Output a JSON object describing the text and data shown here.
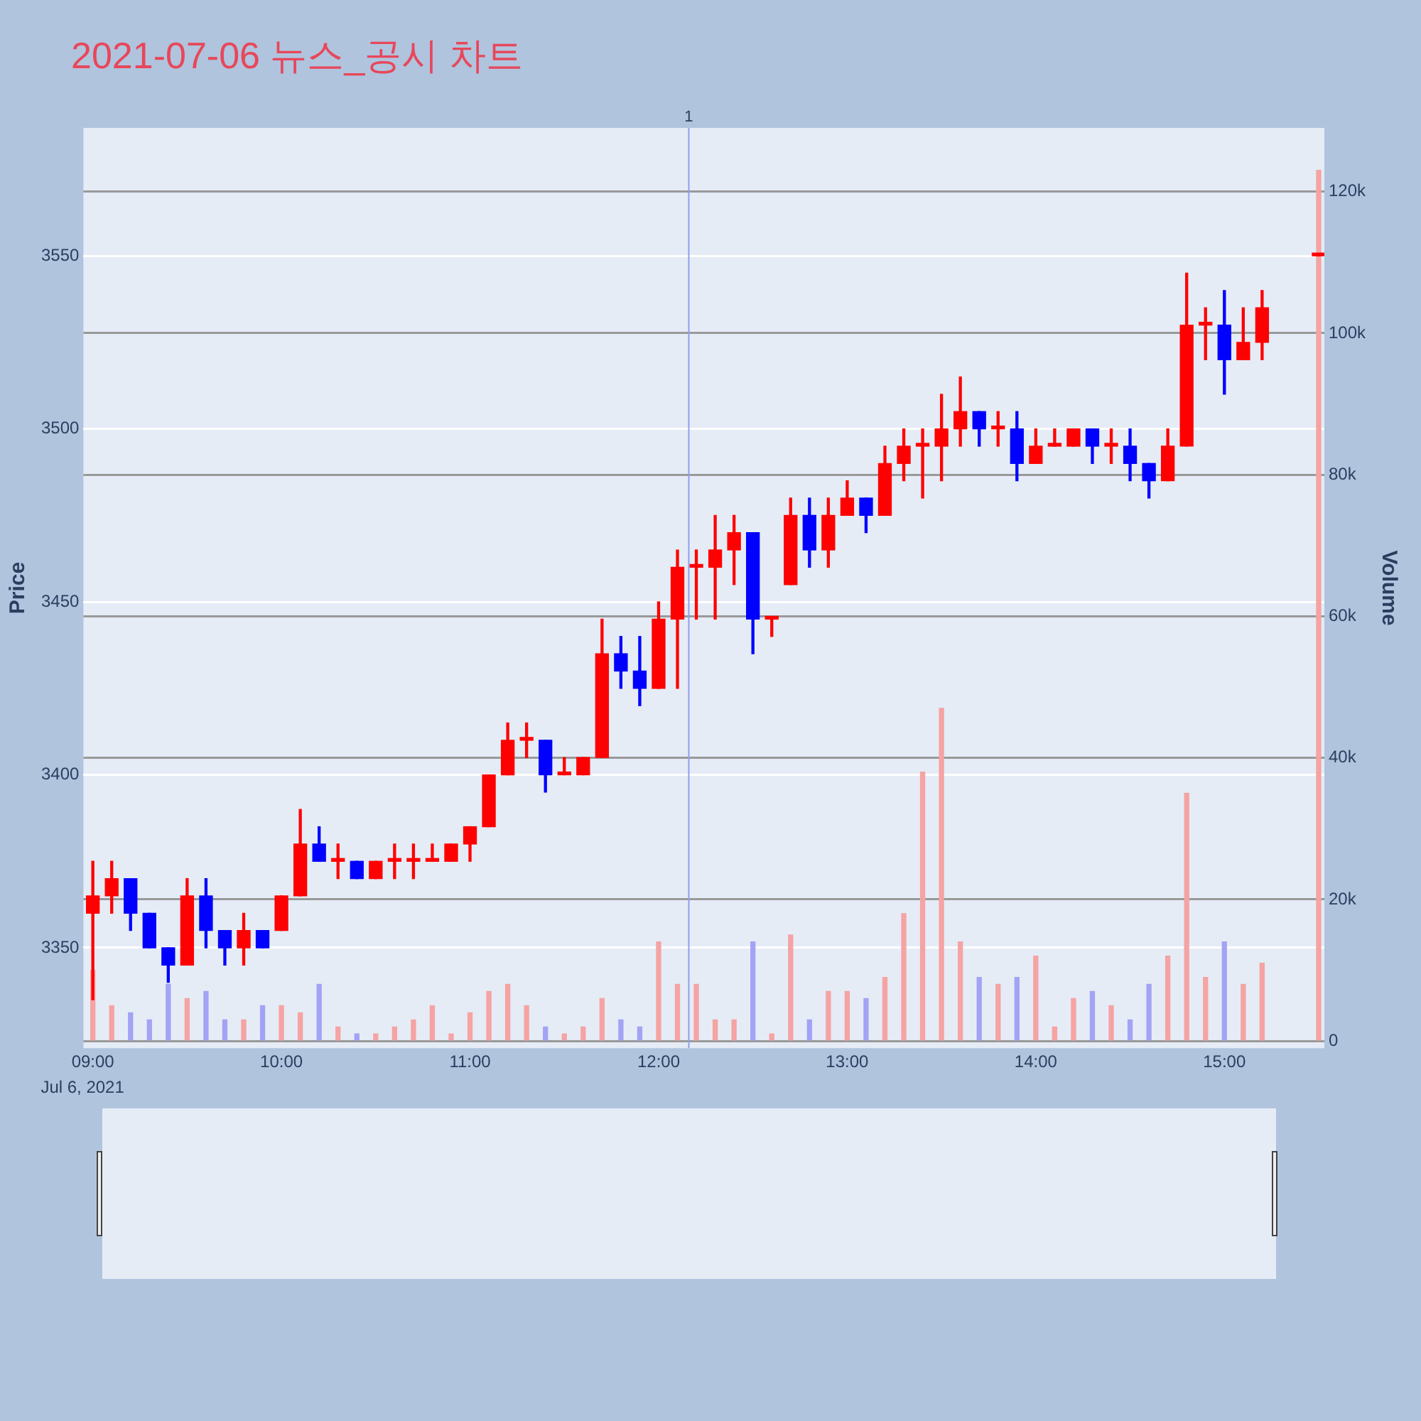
{
  "chart_data": {
    "type": "candlestick",
    "title": "2021-07-06 뉴스_공시 차트",
    "ylabel": "Price",
    "y2label": "Volume",
    "annotations": [
      "Jul 6, 2021",
      "1"
    ],
    "x": [
      9,
      9.1,
      9.2,
      9.3,
      9.4,
      9.5,
      9.6,
      9.7,
      9.8,
      9.9,
      10,
      10.1,
      10.2,
      10.3,
      10.4,
      10.5,
      10.6,
      10.7,
      10.8,
      10.9,
      11,
      11.1,
      11.2,
      11.3,
      11.4,
      11.5,
      11.6,
      11.7,
      11.8,
      11.9,
      12,
      12.1,
      12.2,
      12.3,
      12.4,
      12.5,
      12.6,
      12.7,
      12.8,
      12.9,
      13,
      13.1,
      13.2,
      13.3,
      13.4,
      13.5,
      13.6,
      13.7,
      13.8,
      13.9,
      14,
      14.1,
      14.2,
      14.3,
      14.4,
      14.5,
      14.6,
      14.7,
      14.8,
      14.9,
      15,
      15.1,
      15.2,
      15.5
    ],
    "series": [
      {
        "colors": [
          "#ff0000",
          "#ff0000",
          "#0000ff",
          "#0000ff",
          "#0000ff",
          "#ff0000",
          "#0000ff",
          "#0000ff",
          "#ff0000",
          "#0000ff",
          "#ff0000",
          "#ff0000",
          "#0000ff",
          "#ff0000",
          "#0000ff",
          "#ff0000",
          "#ff0000",
          "#ff0000",
          "#ff0000",
          "#ff0000",
          "#ff0000",
          "#ff0000",
          "#ff0000",
          "#ff0000",
          "#0000ff",
          "#ff0000",
          "#ff0000",
          "#ff0000",
          "#0000ff",
          "#0000ff",
          "#ff0000",
          "#ff0000",
          "#ff0000",
          "#ff0000",
          "#ff0000",
          "#0000ff",
          "#ff0000",
          "#ff0000",
          "#0000ff",
          "#ff0000",
          "#ff0000",
          "#0000ff",
          "#ff0000",
          "#ff0000",
          "#ff0000",
          "#ff0000",
          "#ff0000",
          "#0000ff",
          "#ff0000",
          "#0000ff",
          "#ff0000",
          "#ff0000",
          "#ff0000",
          "#0000ff",
          "#ff0000",
          "#0000ff",
          "#0000ff",
          "#ff0000",
          "#ff0000",
          "#ff0000",
          "#0000ff",
          "#ff0000",
          "#ff0000",
          "#ff0000"
        ],
        "ohlc": [
          [
            3360,
            3375,
            3335,
            3365
          ],
          [
            3365,
            3375,
            3360,
            3370
          ],
          [
            3370,
            3370,
            3355,
            3360
          ],
          [
            3360,
            3360,
            3350,
            3350
          ],
          [
            3350,
            3350,
            3340,
            3345
          ],
          [
            3345,
            3370,
            3345,
            3365
          ],
          [
            3365,
            3370,
            3350,
            3355
          ],
          [
            3355,
            3355,
            3345,
            3350
          ],
          [
            3350,
            3360,
            3345,
            3355
          ],
          [
            3355,
            3355,
            3350,
            3350
          ],
          [
            3355,
            3365,
            3355,
            3365
          ],
          [
            3365,
            3390,
            3365,
            3380
          ],
          [
            3380,
            3385,
            3375,
            3375
          ],
          [
            3375,
            3380,
            3370,
            3375
          ],
          [
            3375,
            3375,
            3370,
            3370
          ],
          [
            3370,
            3375,
            3370,
            3375
          ],
          [
            3375,
            3380,
            3370,
            3375
          ],
          [
            3375,
            3380,
            3370,
            3375
          ],
          [
            3375,
            3380,
            3375,
            3375
          ],
          [
            3375,
            3380,
            3375,
            3380
          ],
          [
            3380,
            3385,
            3375,
            3385
          ],
          [
            3385,
            3400,
            3385,
            3400
          ],
          [
            3400,
            3415,
            3400,
            3410
          ],
          [
            3410,
            3415,
            3405,
            3410
          ],
          [
            3410,
            3410,
            3395,
            3400
          ],
          [
            3400,
            3405,
            3400,
            3400
          ],
          [
            3400,
            3405,
            3400,
            3405
          ],
          [
            3405,
            3445,
            3405,
            3435
          ],
          [
            3435,
            3440,
            3425,
            3430
          ],
          [
            3430,
            3440,
            3420,
            3425
          ],
          [
            3425,
            3450,
            3425,
            3445
          ],
          [
            3445,
            3465,
            3425,
            3460
          ],
          [
            3460,
            3465,
            3445,
            3460
          ],
          [
            3460,
            3475,
            3445,
            3465
          ],
          [
            3465,
            3475,
            3455,
            3470
          ],
          [
            3470,
            3470,
            3435,
            3445
          ],
          [
            3445,
            3445,
            3440,
            3445
          ],
          [
            3455,
            3480,
            3455,
            3475
          ],
          [
            3475,
            3480,
            3460,
            3465
          ],
          [
            3465,
            3480,
            3460,
            3475
          ],
          [
            3475,
            3485,
            3475,
            3480
          ],
          [
            3480,
            3480,
            3470,
            3475
          ],
          [
            3475,
            3495,
            3475,
            3490
          ],
          [
            3490,
            3500,
            3485,
            3495
          ],
          [
            3495,
            3500,
            3480,
            3495
          ],
          [
            3495,
            3510,
            3485,
            3500
          ],
          [
            3500,
            3515,
            3495,
            3505
          ],
          [
            3505,
            3505,
            3495,
            3500
          ],
          [
            3500,
            3505,
            3495,
            3500
          ],
          [
            3500,
            3505,
            3485,
            3490
          ],
          [
            3490,
            3500,
            3490,
            3495
          ],
          [
            3495,
            3500,
            3495,
            3495
          ],
          [
            3495,
            3500,
            3495,
            3500
          ],
          [
            3500,
            3500,
            3490,
            3495
          ],
          [
            3495,
            3500,
            3490,
            3495
          ],
          [
            3495,
            3500,
            3485,
            3490
          ],
          [
            3490,
            3490,
            3480,
            3485
          ],
          [
            3485,
            3500,
            3485,
            3495
          ],
          [
            3495,
            3545,
            3495,
            3530
          ],
          [
            3530,
            3535,
            3520,
            3530
          ],
          [
            3530,
            3540,
            3510,
            3520
          ],
          [
            3520,
            3535,
            3520,
            3525
          ],
          [
            3525,
            3540,
            3520,
            3535
          ],
          [
            3550,
            3550,
            3550,
            3550
          ]
        ]
      },
      {
        "type": "bar",
        "axis": "y2",
        "colors": [
          "#f5a3a3",
          "#f5a3a3",
          "#a3a3f5",
          "#a3a3f5",
          "#a3a3f5",
          "#f5a3a3",
          "#a3a3f5",
          "#a3a3f5",
          "#f5a3a3",
          "#a3a3f5",
          "#f5a3a3",
          "#f5a3a3",
          "#a3a3f5",
          "#f5a3a3",
          "#a3a3f5",
          "#f5a3a3",
          "#f5a3a3",
          "#f5a3a3",
          "#f5a3a3",
          "#f5a3a3",
          "#f5a3a3",
          "#f5a3a3",
          "#f5a3a3",
          "#f5a3a3",
          "#a3a3f5",
          "#f5a3a3",
          "#f5a3a3",
          "#f5a3a3",
          "#a3a3f5",
          "#a3a3f5",
          "#f5a3a3",
          "#f5a3a3",
          "#f5a3a3",
          "#f5a3a3",
          "#f5a3a3",
          "#a3a3f5",
          "#f5a3a3",
          "#f5a3a3",
          "#a3a3f5",
          "#f5a3a3",
          "#f5a3a3",
          "#a3a3f5",
          "#f5a3a3",
          "#f5a3a3",
          "#f5a3a3",
          "#f5a3a3",
          "#f5a3a3",
          "#a3a3f5",
          "#f5a3a3",
          "#a3a3f5",
          "#f5a3a3",
          "#f5a3a3",
          "#f5a3a3",
          "#a3a3f5",
          "#f5a3a3",
          "#a3a3f5",
          "#a3a3f5",
          "#f5a3a3",
          "#f5a3a3",
          "#f5a3a3",
          "#a3a3f5",
          "#f5a3a3",
          "#f5a3a3",
          "#f5a3a3"
        ],
        "values": [
          10000,
          5000,
          4000,
          3000,
          8000,
          6000,
          7000,
          3000,
          3000,
          5000,
          5000,
          4000,
          8000,
          2000,
          1000,
          1000,
          2000,
          3000,
          5000,
          1000,
          4000,
          7000,
          8000,
          5000,
          2000,
          1000,
          2000,
          6000,
          3000,
          2000,
          14000,
          8000,
          8000,
          3000,
          3000,
          14000,
          1000,
          15000,
          3000,
          7000,
          7000,
          6000,
          9000,
          18000,
          38000,
          47000,
          14000,
          9000,
          8000,
          9000,
          12000,
          2000,
          6000,
          7000,
          5000,
          3000,
          8000,
          12000,
          35000,
          9000,
          14000,
          8000,
          11000,
          123000
        ]
      }
    ],
    "xlim": [
      8.95,
      15.53
    ],
    "xticks": [
      {
        "value": 9,
        "label": "09:00"
      },
      {
        "value": 10,
        "label": "10:00"
      },
      {
        "value": 11,
        "label": "11:00"
      },
      {
        "value": 12,
        "label": "12:00"
      },
      {
        "value": 13,
        "label": "13:00"
      },
      {
        "value": 14,
        "label": "14:00"
      },
      {
        "value": 15,
        "label": "15:00"
      }
    ],
    "ylim": [
      3321,
      3587
    ],
    "yticks": [
      3350,
      3400,
      3450,
      3500,
      3550
    ],
    "y2lim": [
      -1000,
      129000
    ],
    "y2ticks": [
      0,
      {
        "value": 20000,
        "label": "20k"
      },
      {
        "value": 40000,
        "label": "40k"
      },
      {
        "value": 60000,
        "label": "60k"
      },
      {
        "value": 80000,
        "label": "80k"
      },
      {
        "value": 100000,
        "label": "100k"
      },
      {
        "value": 120000,
        "label": "120k"
      }
    ],
    "ref_lines": [
      {
        "axis": "x",
        "value": 12.16,
        "color": "#8da0ee"
      }
    ],
    "grid": "y",
    "legend": false
  }
}
